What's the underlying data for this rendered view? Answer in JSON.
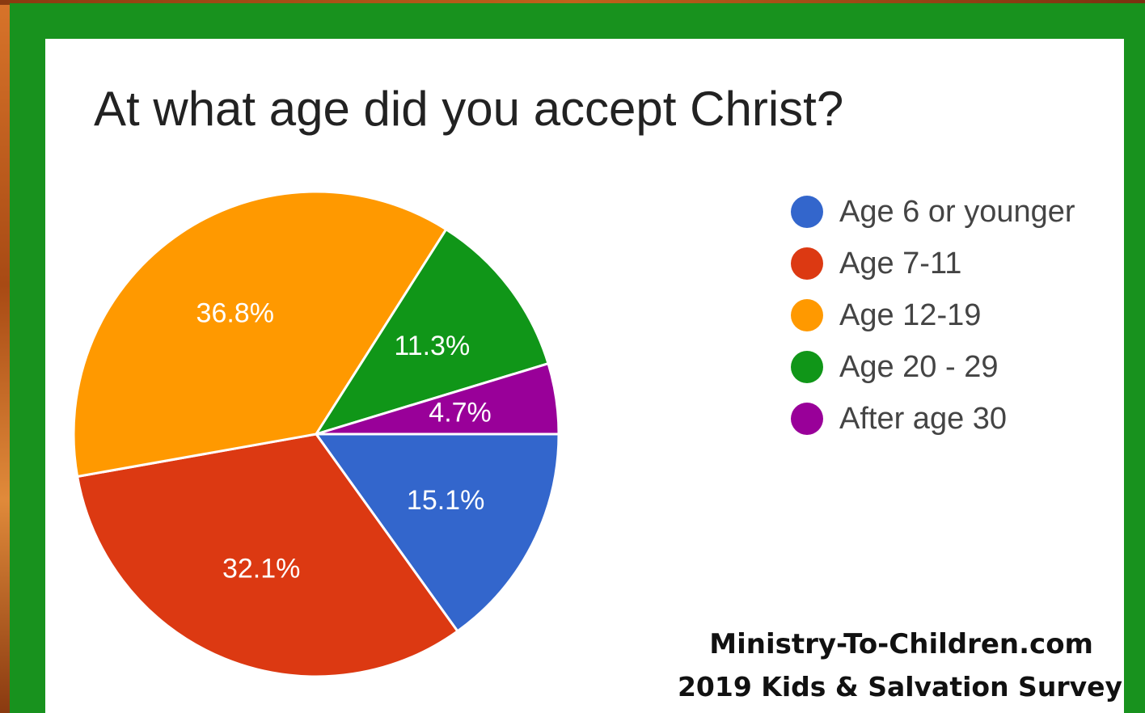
{
  "chart_data": {
    "type": "pie",
    "title": "At what age did you accept Christ?",
    "legend_position": "right",
    "slices": [
      {
        "name": "Age 6 or younger",
        "value": 15.1,
        "label": "15.1%",
        "color": "#3366cc"
      },
      {
        "name": "Age 7-11",
        "value": 32.1,
        "label": "32.1%",
        "color": "#dc3912"
      },
      {
        "name": "Age 12-19",
        "value": 36.8,
        "label": "36.8%",
        "color": "#ff9900"
      },
      {
        "name": "Age 20 - 29",
        "value": 11.3,
        "label": "11.3%",
        "color": "#109618"
      },
      {
        "name": "After age 30",
        "value": 4.7,
        "label": "4.7%",
        "color": "#990099"
      }
    ]
  },
  "footer": {
    "site": "Ministry-To-Children.com",
    "survey": "2019 Kids & Salvation Survey"
  },
  "colors": {
    "frame": "#18921e",
    "card": "#ffffff"
  }
}
